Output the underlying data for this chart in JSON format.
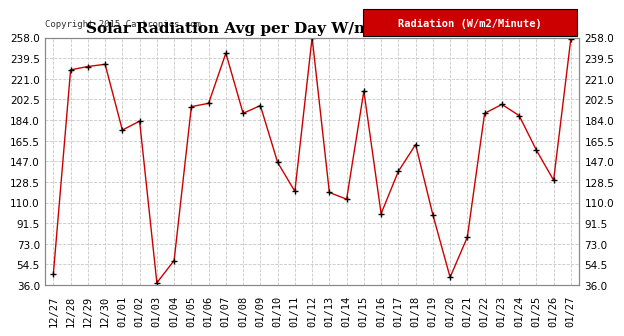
{
  "title": "Solar Radiation Avg per Day W/m2/minute 20150127",
  "copyright": "Copyright 2015 Cartronics.com",
  "legend_label": "Radiation (W/m2/Minute)",
  "dates": [
    "12/27",
    "12/28",
    "12/29",
    "12/30",
    "01/01",
    "01/02",
    "01/03",
    "01/04",
    "01/05",
    "01/06",
    "01/07",
    "01/08",
    "01/09",
    "01/10",
    "01/11",
    "01/12",
    "01/13",
    "01/14",
    "01/15",
    "01/16",
    "01/17",
    "01/18",
    "01/19",
    "01/20",
    "01/21",
    "01/22",
    "01/23",
    "01/24",
    "01/25",
    "01/26",
    "01/27"
  ],
  "values": [
    46,
    229,
    232,
    234,
    175,
    183,
    38,
    58,
    196,
    199,
    244,
    190,
    197,
    146,
    120,
    258,
    119,
    113,
    210,
    100,
    138,
    162,
    99,
    43,
    79,
    190,
    198,
    188,
    157,
    130,
    257
  ],
  "ylim": [
    36.0,
    258.0
  ],
  "yticks": [
    36.0,
    54.5,
    73.0,
    91.5,
    110.0,
    128.5,
    147.0,
    165.5,
    184.0,
    202.5,
    221.0,
    239.5,
    258.0
  ],
  "line_color": "#cc0000",
  "marker_color": "#000000",
  "bg_color": "#ffffff",
  "plot_bg_color": "#ffffff",
  "grid_color": "#c8c8c8",
  "title_fontsize": 11,
  "tick_fontsize": 7.5,
  "copyright_fontsize": 6.5,
  "legend_bg": "#cc0000",
  "legend_text_color": "#ffffff",
  "legend_fontsize": 7.5
}
